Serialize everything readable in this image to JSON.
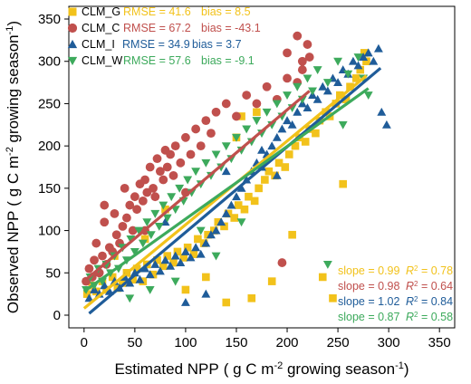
{
  "chart_data": {
    "type": "scatter",
    "xlabel_main": "Estimated NPP",
    "xlabel_unit_pre": "( g C m",
    "xlabel_sup1": "-2",
    "xlabel_unit_mid": " growing season",
    "xlabel_sup2": "-1",
    "xlabel_unit_post": ")",
    "ylabel_main": "Observed NPP",
    "ylabel_unit_pre": "( g C m",
    "ylabel_sup1": "-2",
    "ylabel_unit_mid": " growing season",
    "ylabel_sup2": "-1",
    "ylabel_unit_post": ")",
    "xlim": [
      -15,
      365
    ],
    "ylim": [
      -15,
      365
    ],
    "xticks": [
      0,
      50,
      100,
      150,
      200,
      250,
      300,
      350
    ],
    "yticks": [
      0,
      50,
      100,
      150,
      200,
      250,
      300,
      350
    ],
    "legend_position": "top-left",
    "stats_position": "bottom-right",
    "r2_prefix": "R",
    "r2_sup": "2",
    "series": [
      {
        "name": "CLM_G",
        "marker": "square",
        "color": "#F2C21B",
        "rmse_label": "RMSE = 41.6",
        "bias_label": "bias = 8.5",
        "slope_label": "slope = 0.99",
        "r2_value": " = 0.78",
        "line": [
          [
            0,
            8
          ],
          [
            278,
            283
          ]
        ],
        "points": [
          [
            3,
            25
          ],
          [
            8,
            35
          ],
          [
            12,
            28
          ],
          [
            18,
            40
          ],
          [
            22,
            30
          ],
          [
            28,
            45
          ],
          [
            33,
            32
          ],
          [
            38,
            38
          ],
          [
            42,
            50
          ],
          [
            48,
            42
          ],
          [
            52,
            55
          ],
          [
            58,
            40
          ],
          [
            62,
            60
          ],
          [
            68,
            48
          ],
          [
            72,
            65
          ],
          [
            78,
            58
          ],
          [
            82,
            70
          ],
          [
            88,
            62
          ],
          [
            92,
            75
          ],
          [
            98,
            68
          ],
          [
            102,
            80
          ],
          [
            108,
            72
          ],
          [
            112,
            90
          ],
          [
            118,
            85
          ],
          [
            122,
            95
          ],
          [
            128,
            100
          ],
          [
            132,
            110
          ],
          [
            138,
            105
          ],
          [
            142,
            120
          ],
          [
            148,
            115
          ],
          [
            152,
            130
          ],
          [
            158,
            125
          ],
          [
            162,
            140
          ],
          [
            168,
            135
          ],
          [
            172,
            150
          ],
          [
            178,
            160
          ],
          [
            182,
            170
          ],
          [
            188,
            165
          ],
          [
            192,
            180
          ],
          [
            198,
            175
          ],
          [
            202,
            190
          ],
          [
            208,
            200
          ],
          [
            212,
            210
          ],
          [
            218,
            205
          ],
          [
            222,
            220
          ],
          [
            228,
            215
          ],
          [
            232,
            230
          ],
          [
            238,
            240
          ],
          [
            242,
            235
          ],
          [
            248,
            250
          ],
          [
            252,
            260
          ],
          [
            258,
            255
          ],
          [
            262,
            270
          ],
          [
            268,
            280
          ],
          [
            272,
            290
          ],
          [
            276,
            310
          ],
          [
            278,
            300
          ],
          [
            185,
            40
          ],
          [
            205,
            95
          ],
          [
            235,
            45
          ],
          [
            245,
            20
          ],
          [
            255,
            155
          ],
          [
            165,
            20
          ],
          [
            140,
            15
          ],
          [
            120,
            45
          ],
          [
            100,
            30
          ],
          [
            60,
            90
          ],
          [
            30,
            70
          ],
          [
            80,
            125
          ],
          [
            170,
            240
          ],
          [
            155,
            235
          ],
          [
            150,
            210
          ]
        ]
      },
      {
        "name": "CLM_C",
        "marker": "circle",
        "color": "#C0504D",
        "rmse_label": "RMSE = 67.2",
        "bias_label": "bias = -43.1",
        "slope_label": "slope = 0.98",
        "r2_value": " = 0.64",
        "line": [
          [
            0,
            40
          ],
          [
            222,
            265
          ]
        ],
        "points": [
          [
            2,
            40
          ],
          [
            5,
            55
          ],
          [
            8,
            45
          ],
          [
            10,
            65
          ],
          [
            15,
            50
          ],
          [
            18,
            70
          ],
          [
            20,
            110
          ],
          [
            22,
            60
          ],
          [
            25,
            80
          ],
          [
            28,
            75
          ],
          [
            30,
            120
          ],
          [
            32,
            95
          ],
          [
            35,
            85
          ],
          [
            38,
            105
          ],
          [
            40,
            150
          ],
          [
            42,
            115
          ],
          [
            45,
            130
          ],
          [
            48,
            100
          ],
          [
            50,
            140
          ],
          [
            52,
            125
          ],
          [
            55,
            155
          ],
          [
            58,
            135
          ],
          [
            60,
            160
          ],
          [
            62,
            145
          ],
          [
            65,
            175
          ],
          [
            68,
            150
          ],
          [
            70,
            140
          ],
          [
            72,
            185
          ],
          [
            75,
            170
          ],
          [
            78,
            160
          ],
          [
            80,
            195
          ],
          [
            82,
            175
          ],
          [
            85,
            190
          ],
          [
            88,
            165
          ],
          [
            90,
            200
          ],
          [
            95,
            180
          ],
          [
            100,
            210
          ],
          [
            105,
            190
          ],
          [
            110,
            220
          ],
          [
            115,
            200
          ],
          [
            120,
            230
          ],
          [
            125,
            215
          ],
          [
            130,
            240
          ],
          [
            140,
            250
          ],
          [
            150,
            235
          ],
          [
            160,
            260
          ],
          [
            170,
            250
          ],
          [
            180,
            270
          ],
          [
            190,
            255
          ],
          [
            200,
            280
          ],
          [
            210,
            275
          ],
          [
            215,
            300
          ],
          [
            220,
            320
          ],
          [
            222,
            305
          ],
          [
            200,
            310
          ],
          [
            195,
            62
          ],
          [
            20,
            130
          ],
          [
            12,
            85
          ],
          [
            60,
            100
          ],
          [
            100,
            145
          ],
          [
            215,
            290
          ],
          [
            210,
            330
          ]
        ]
      },
      {
        "name": "CLM_I",
        "marker": "triangle-up",
        "color": "#1F5C99",
        "rmse_label": "RMSE = 34.9",
        "bias_label": "bias = 3.7",
        "slope_label": "slope = 1.02",
        "r2_value": " = 0.84",
        "line": [
          [
            5,
            2
          ],
          [
            292,
            292
          ]
        ],
        "points": [
          [
            5,
            20
          ],
          [
            10,
            30
          ],
          [
            15,
            25
          ],
          [
            20,
            35
          ],
          [
            25,
            28
          ],
          [
            30,
            40
          ],
          [
            35,
            32
          ],
          [
            40,
            45
          ],
          [
            45,
            38
          ],
          [
            50,
            50
          ],
          [
            55,
            42
          ],
          [
            60,
            55
          ],
          [
            65,
            48
          ],
          [
            70,
            60
          ],
          [
            75,
            52
          ],
          [
            80,
            65
          ],
          [
            85,
            58
          ],
          [
            90,
            70
          ],
          [
            95,
            62
          ],
          [
            100,
            75
          ],
          [
            105,
            68
          ],
          [
            110,
            80
          ],
          [
            115,
            72
          ],
          [
            120,
            85
          ],
          [
            125,
            95
          ],
          [
            130,
            100
          ],
          [
            135,
            110
          ],
          [
            140,
            120
          ],
          [
            145,
            130
          ],
          [
            150,
            140
          ],
          [
            155,
            150
          ],
          [
            160,
            160
          ],
          [
            165,
            170
          ],
          [
            170,
            180
          ],
          [
            175,
            175
          ],
          [
            180,
            190
          ],
          [
            185,
            200
          ],
          [
            190,
            210
          ],
          [
            195,
            220
          ],
          [
            200,
            230
          ],
          [
            205,
            225
          ],
          [
            210,
            240
          ],
          [
            215,
            250
          ],
          [
            220,
            245
          ],
          [
            225,
            260
          ],
          [
            230,
            255
          ],
          [
            235,
            270
          ],
          [
            240,
            265
          ],
          [
            245,
            280
          ],
          [
            250,
            275
          ],
          [
            255,
            290
          ],
          [
            260,
            285
          ],
          [
            265,
            300
          ],
          [
            270,
            295
          ],
          [
            275,
            305
          ],
          [
            280,
            310
          ],
          [
            285,
            300
          ],
          [
            290,
            315
          ],
          [
            293,
            240
          ],
          [
            298,
            225
          ],
          [
            175,
            195
          ],
          [
            190,
            165
          ],
          [
            120,
            25
          ],
          [
            100,
            15
          ],
          [
            80,
            110
          ],
          [
            140,
            170
          ]
        ]
      },
      {
        "name": "CLM_W",
        "marker": "triangle-down",
        "color": "#3DAA5C",
        "rmse_label": "RMSE = 57.6",
        "bias_label": "bias = -9.1",
        "slope_label": "slope = 0.87",
        "r2_value": " = 0.58",
        "line": [
          [
            0,
            28
          ],
          [
            280,
            268
          ]
        ],
        "points": [
          [
            2,
            30
          ],
          [
            6,
            45
          ],
          [
            10,
            35
          ],
          [
            14,
            55
          ],
          [
            18,
            40
          ],
          [
            22,
            60
          ],
          [
            26,
            50
          ],
          [
            30,
            70
          ],
          [
            34,
            55
          ],
          [
            38,
            80
          ],
          [
            42,
            65
          ],
          [
            46,
            90
          ],
          [
            50,
            75
          ],
          [
            54,
            100
          ],
          [
            58,
            85
          ],
          [
            62,
            110
          ],
          [
            66,
            95
          ],
          [
            70,
            120
          ],
          [
            74,
            105
          ],
          [
            78,
            130
          ],
          [
            82,
            115
          ],
          [
            86,
            140
          ],
          [
            90,
            125
          ],
          [
            94,
            150
          ],
          [
            98,
            135
          ],
          [
            102,
            160
          ],
          [
            106,
            145
          ],
          [
            110,
            170
          ],
          [
            115,
            155
          ],
          [
            120,
            180
          ],
          [
            125,
            165
          ],
          [
            130,
            190
          ],
          [
            135,
            175
          ],
          [
            140,
            200
          ],
          [
            145,
            185
          ],
          [
            150,
            210
          ],
          [
            155,
            195
          ],
          [
            160,
            220
          ],
          [
            165,
            205
          ],
          [
            170,
            230
          ],
          [
            175,
            215
          ],
          [
            180,
            240
          ],
          [
            185,
            225
          ],
          [
            190,
            250
          ],
          [
            195,
            235
          ],
          [
            200,
            260
          ],
          [
            205,
            245
          ],
          [
            210,
            270
          ],
          [
            215,
            255
          ],
          [
            220,
            280
          ],
          [
            225,
            265
          ],
          [
            230,
            290
          ],
          [
            240,
            275
          ],
          [
            250,
            300
          ],
          [
            260,
            285
          ],
          [
            270,
            305
          ],
          [
            275,
            280
          ],
          [
            280,
            260
          ],
          [
            65,
            30
          ],
          [
            45,
            20
          ],
          [
            115,
            100
          ],
          [
            240,
            60
          ],
          [
            90,
            40
          ],
          [
            130,
            70
          ],
          [
            155,
            110
          ],
          [
            255,
            225
          ]
        ]
      }
    ]
  }
}
